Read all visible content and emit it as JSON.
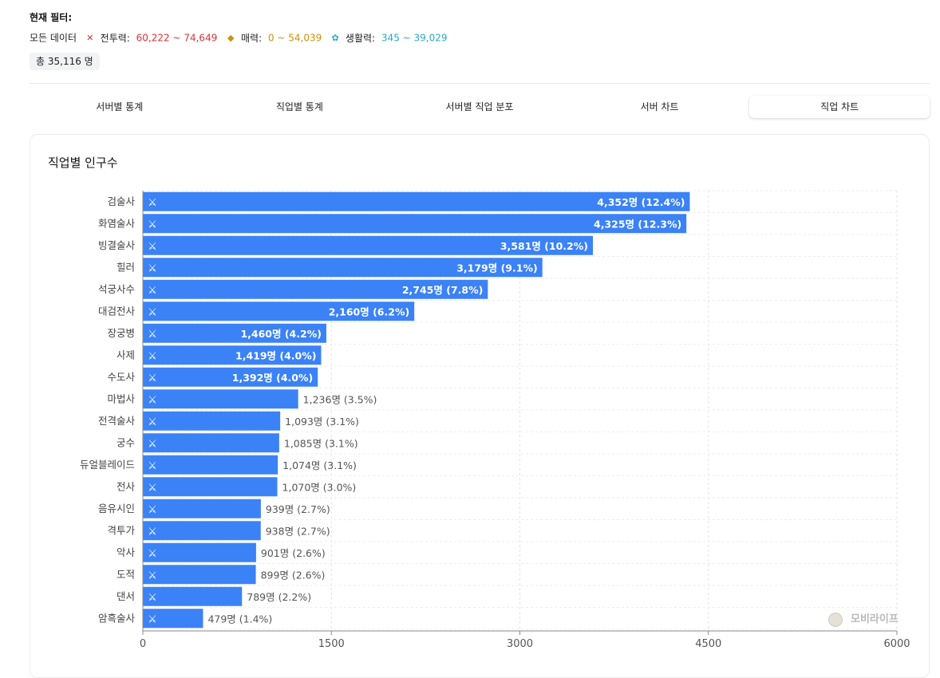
{
  "filters": {
    "title": "현재 필터:",
    "all_data": "모든 데이터",
    "combat": {
      "label": "전투력:",
      "range": "60,222 ~ 74,649",
      "color": "#d9323a",
      "icon": "crossed-swords-icon"
    },
    "charm": {
      "label": "매력:",
      "range": "0 ~ 54,039",
      "color": "#c9930c",
      "icon": "charm-icon"
    },
    "life": {
      "label": "생활력:",
      "range": "345 ~ 39,029",
      "color": "#2ba8c8",
      "icon": "life-icon"
    },
    "total": "총 35,116 명"
  },
  "tabs": [
    {
      "label": "서버별 통계",
      "active": false
    },
    {
      "label": "직업별 통계",
      "active": false
    },
    {
      "label": "서버별 직업 분포",
      "active": false
    },
    {
      "label": "서버 차트",
      "active": false
    },
    {
      "label": "직업 차트",
      "active": true
    }
  ],
  "card": {
    "title": "직업별 인구수"
  },
  "watermark": "모비라이프",
  "chart_data": {
    "type": "bar",
    "orientation": "horizontal",
    "title": "직업별 인구수",
    "xlabel": "",
    "ylabel": "",
    "xlim": [
      0,
      6000
    ],
    "xticks": [
      0,
      1500,
      3000,
      4500,
      6000
    ],
    "grid": true,
    "bar_color": "#3b82f6",
    "categories": [
      "검술사",
      "화염술사",
      "빙결술사",
      "힐러",
      "석궁사수",
      "대검전사",
      "장궁병",
      "사제",
      "수도사",
      "마법사",
      "전격술사",
      "궁수",
      "듀얼블레이드",
      "전사",
      "음유시인",
      "격투가",
      "악사",
      "도적",
      "댄서",
      "암흑술사"
    ],
    "values": [
      4352,
      4325,
      3581,
      3179,
      2745,
      2160,
      1460,
      1419,
      1392,
      1236,
      1093,
      1085,
      1074,
      1070,
      939,
      938,
      901,
      899,
      789,
      479
    ],
    "labels": [
      "4,352명 (12.4%)",
      "4,325명 (12.3%)",
      "3,581명 (10.2%)",
      "3,179명 (9.1%)",
      "2,745명 (7.8%)",
      "2,160명 (6.2%)",
      "1,460명 (4.2%)",
      "1,419명 (4.0%)",
      "1,392명 (4.0%)",
      "1,236명 (3.5%)",
      "1,093명 (3.1%)",
      "1,085명 (3.1%)",
      "1,074명 (3.1%)",
      "1,070명 (3.0%)",
      "939명 (2.7%)",
      "938명 (2.7%)",
      "901명 (2.6%)",
      "899명 (2.6%)",
      "789명 (2.2%)",
      "479명 (1.4%)"
    ]
  }
}
